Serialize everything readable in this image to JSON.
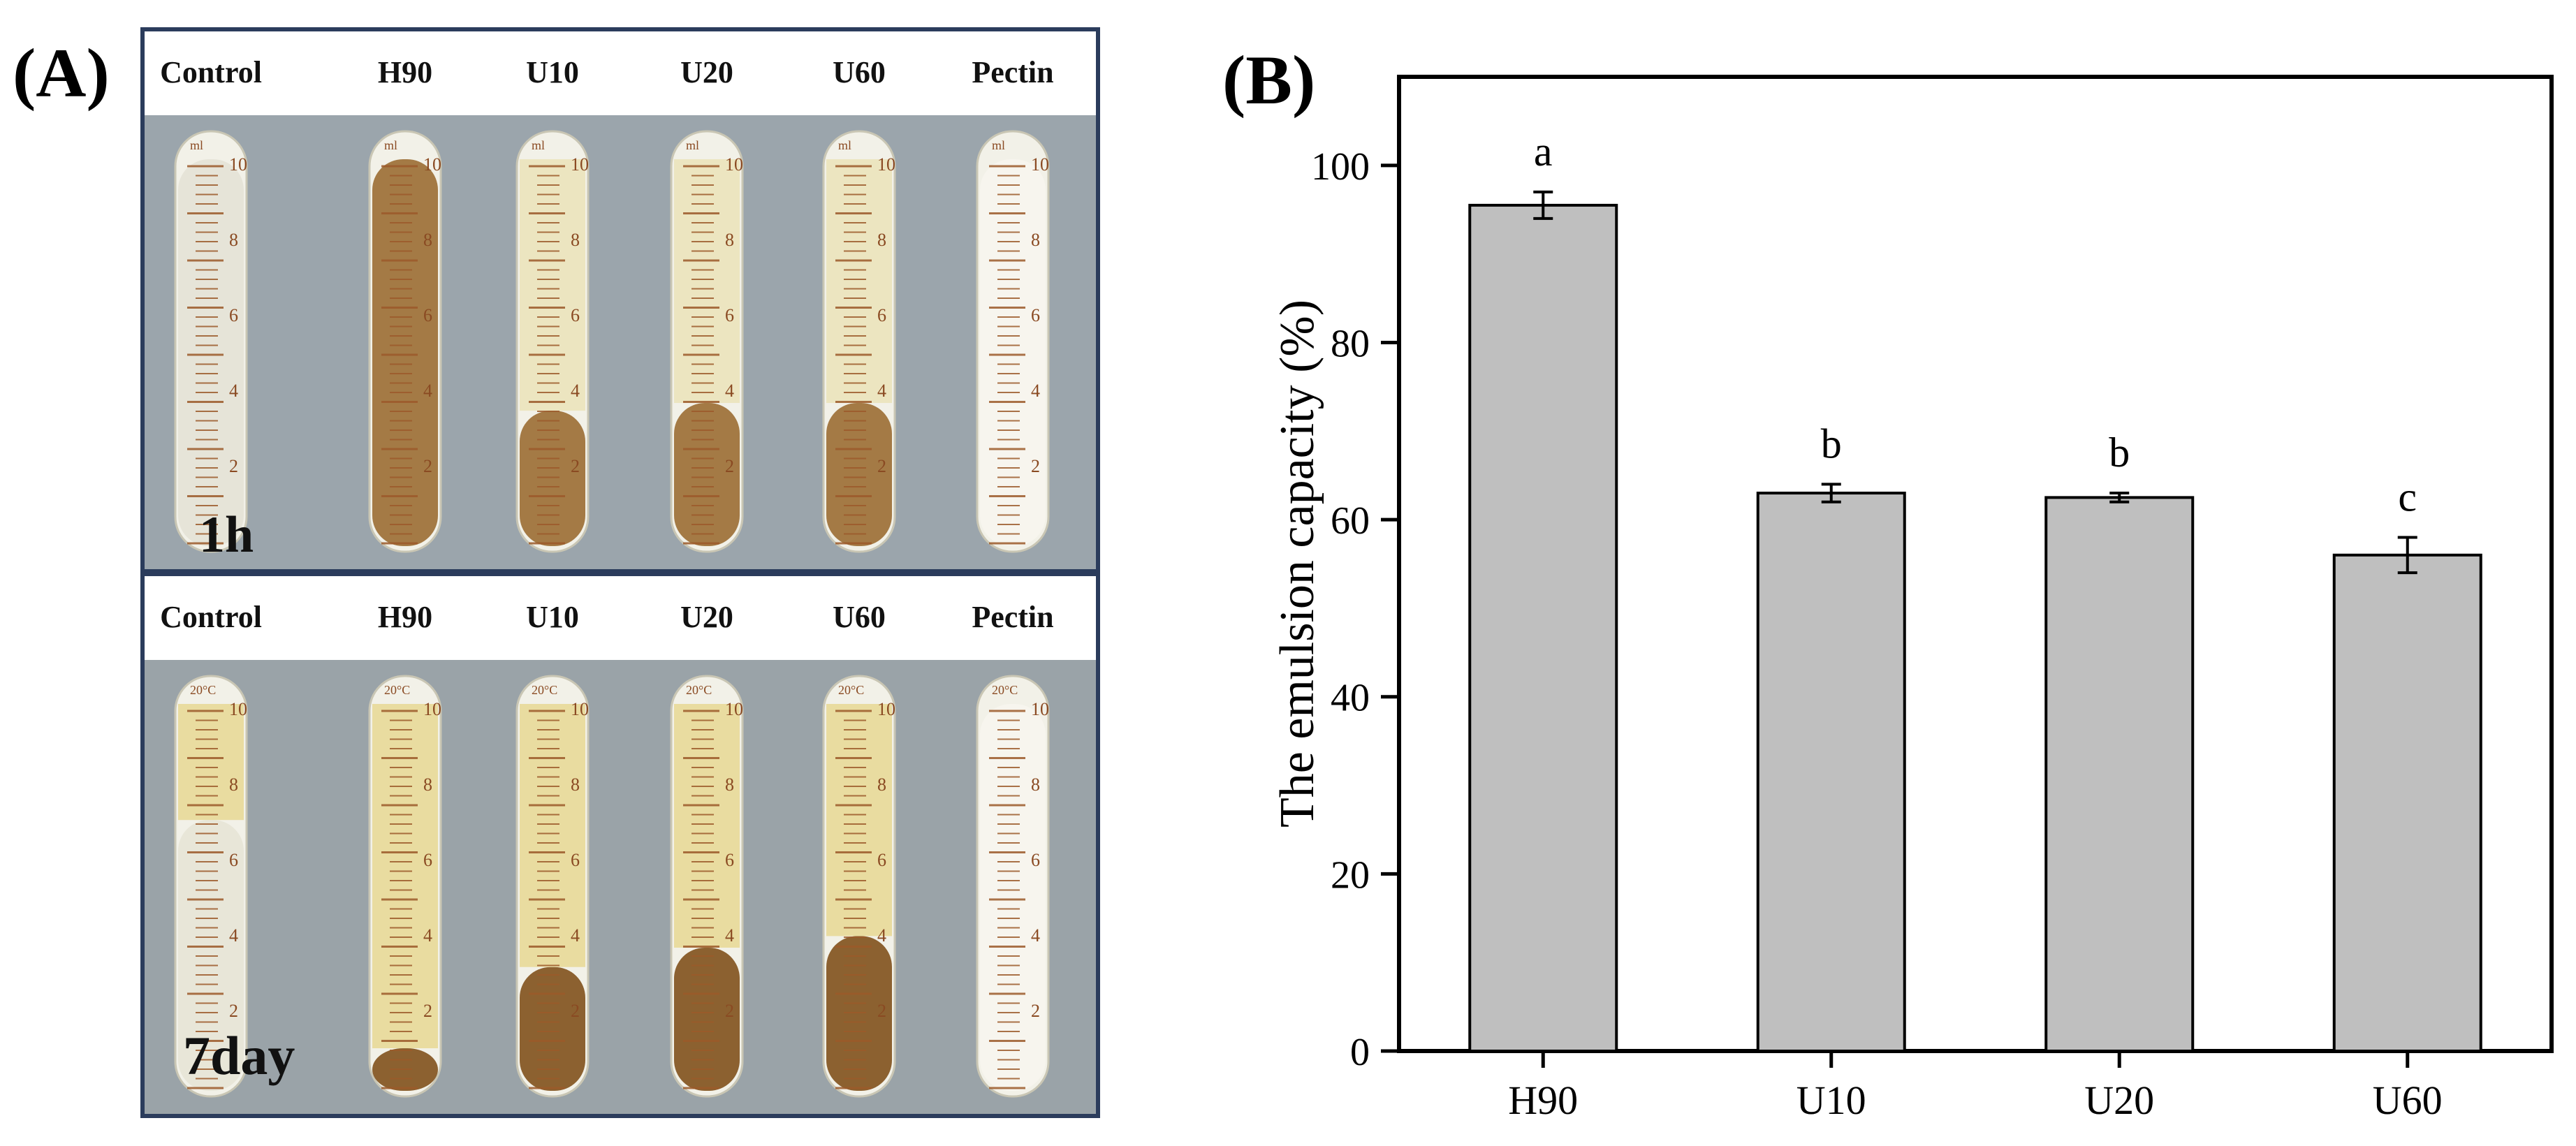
{
  "panel_a": {
    "label": "(A)",
    "rows": [
      {
        "time_label": "1h",
        "tube_labels": [
          "Control",
          "H90",
          "U10",
          "U20",
          "U60",
          "Pectin"
        ],
        "graduation_numbers": [
          "2",
          "4",
          "6",
          "8",
          "10"
        ],
        "tube_marking": "ml",
        "colors": {
          "cream": "#ece5c0",
          "brown": "#a47a45",
          "white": "#f7f5ee",
          "clear": "#e6e4d8"
        }
      },
      {
        "time_label": "7day",
        "tube_labels": [
          "Control",
          "H90",
          "U10",
          "U20",
          "U60",
          "Pectin"
        ],
        "graduation_numbers": [
          "2",
          "4",
          "6",
          "8",
          "10"
        ],
        "tube_marking": "20°C",
        "colors": {
          "cream": "#e9dca0",
          "brown": "#8c6130",
          "white": "#f7f5ee",
          "clear": "#e8e6d8"
        }
      }
    ]
  },
  "chart_data": {
    "type": "bar",
    "panel_label": "(B)",
    "title": "",
    "xlabel": "",
    "ylabel": "The emulsion capacity (%)",
    "categories": [
      "H90",
      "U10",
      "U20",
      "U60"
    ],
    "values": [
      95.5,
      63.0,
      62.5,
      56.0
    ],
    "errors": [
      1.5,
      1.0,
      0.5,
      2.0
    ],
    "significance_letters": [
      "a",
      "b",
      "b",
      "c"
    ],
    "ylim": [
      0,
      110
    ],
    "yticks": [
      0,
      20,
      40,
      60,
      80,
      100
    ],
    "grid": false,
    "bar_color": "#bfbfbf"
  }
}
